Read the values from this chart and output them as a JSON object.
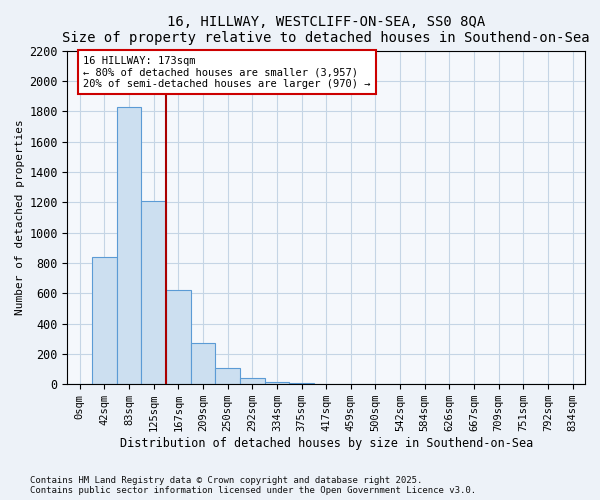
{
  "title1": "16, HILLWAY, WESTCLIFF-ON-SEA, SS0 8QA",
  "title2": "Size of property relative to detached houses in Southend-on-Sea",
  "xlabel": "Distribution of detached houses by size in Southend-on-Sea",
  "ylabel": "Number of detached properties",
  "bar_labels": [
    "0sqm",
    "42sqm",
    "83sqm",
    "125sqm",
    "167sqm",
    "209sqm",
    "250sqm",
    "292sqm",
    "334sqm",
    "375sqm",
    "417sqm",
    "459sqm",
    "500sqm",
    "542sqm",
    "584sqm",
    "626sqm",
    "667sqm",
    "709sqm",
    "751sqm",
    "792sqm",
    "834sqm"
  ],
  "bar_values": [
    0,
    840,
    1830,
    1210,
    620,
    270,
    110,
    40,
    15,
    5,
    3,
    2,
    1,
    0,
    0,
    0,
    0,
    0,
    0,
    0,
    0
  ],
  "bar_color": "#ccdff0",
  "bar_edge_color": "#5b9bd5",
  "vline_x": 3.5,
  "vline_color": "#aa0000",
  "annotation_line1": "16 HILLWAY: 173sqm",
  "annotation_line2": "← 80% of detached houses are smaller (3,957)",
  "annotation_line3": "20% of semi-detached houses are larger (970) →",
  "annotation_box_color": "#cc0000",
  "ylim": [
    0,
    2200
  ],
  "yticks": [
    0,
    200,
    400,
    600,
    800,
    1000,
    1200,
    1400,
    1600,
    1800,
    2000,
    2200
  ],
  "footnote1": "Contains HM Land Registry data © Crown copyright and database right 2025.",
  "footnote2": "Contains public sector information licensed under the Open Government Licence v3.0.",
  "bg_color": "#edf2f8",
  "plot_bg_color": "#f5f8fc",
  "grid_color": "#c5d5e5"
}
